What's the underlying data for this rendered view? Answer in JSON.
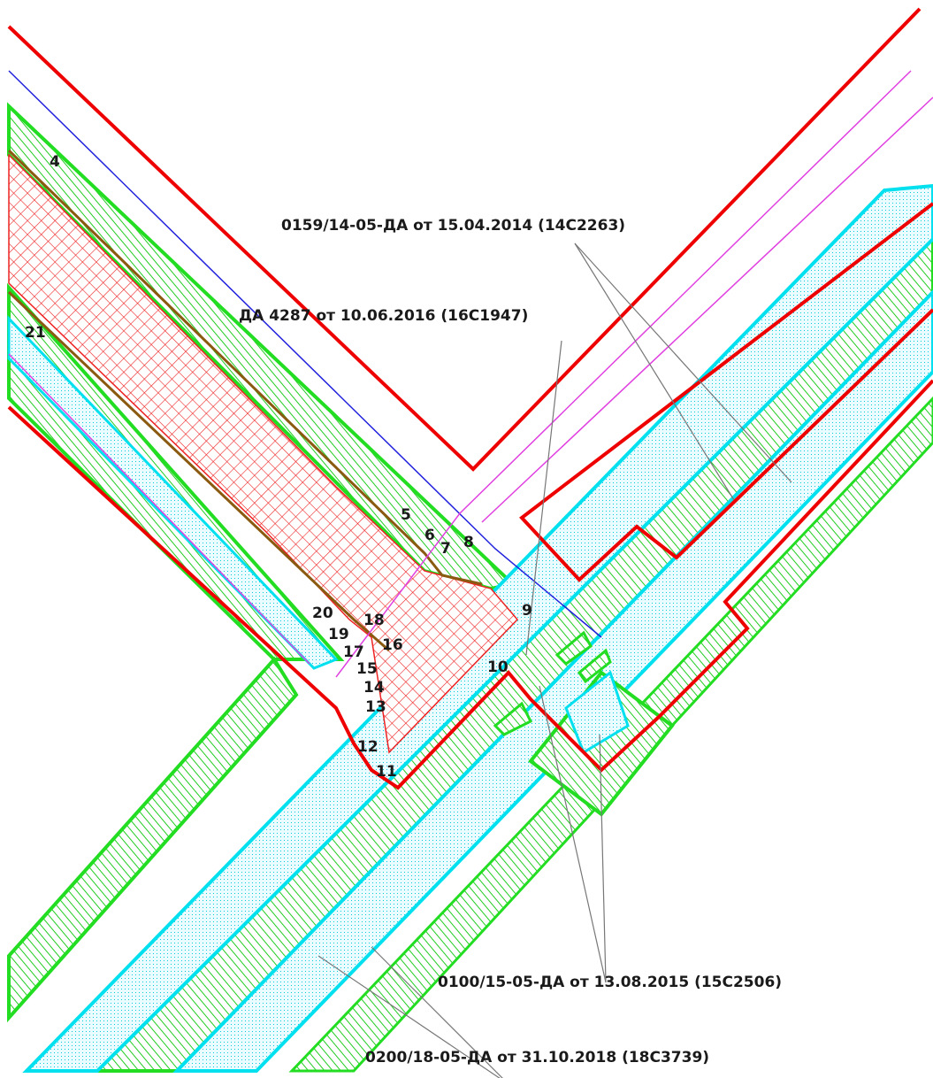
{
  "map": {
    "point_labels": [
      "4",
      "5",
      "6",
      "7",
      "8",
      "9",
      "10",
      "11",
      "12",
      "13",
      "14",
      "15",
      "16",
      "17",
      "18",
      "19",
      "20",
      "21"
    ],
    "annotations": [
      "0159/14-05-ДА от 15.04.2014 (14С2263)",
      "ДА 4287 от 10.06.2016 (16С1947)",
      "0100/15-05-ДА от 13.08.2015 (15С2506)",
      "0200/18-05-ДА от 31.10.2018 (18С3739)"
    ]
  },
  "colors": {
    "red_boundary": "#ee0000",
    "green_zone": "#22dd22",
    "cyan_zone": "#00e0ee",
    "blue_line": "#2222dd",
    "magenta_line": "#e040e0",
    "brown_line": "#8a5a10",
    "leader": "#777777"
  }
}
